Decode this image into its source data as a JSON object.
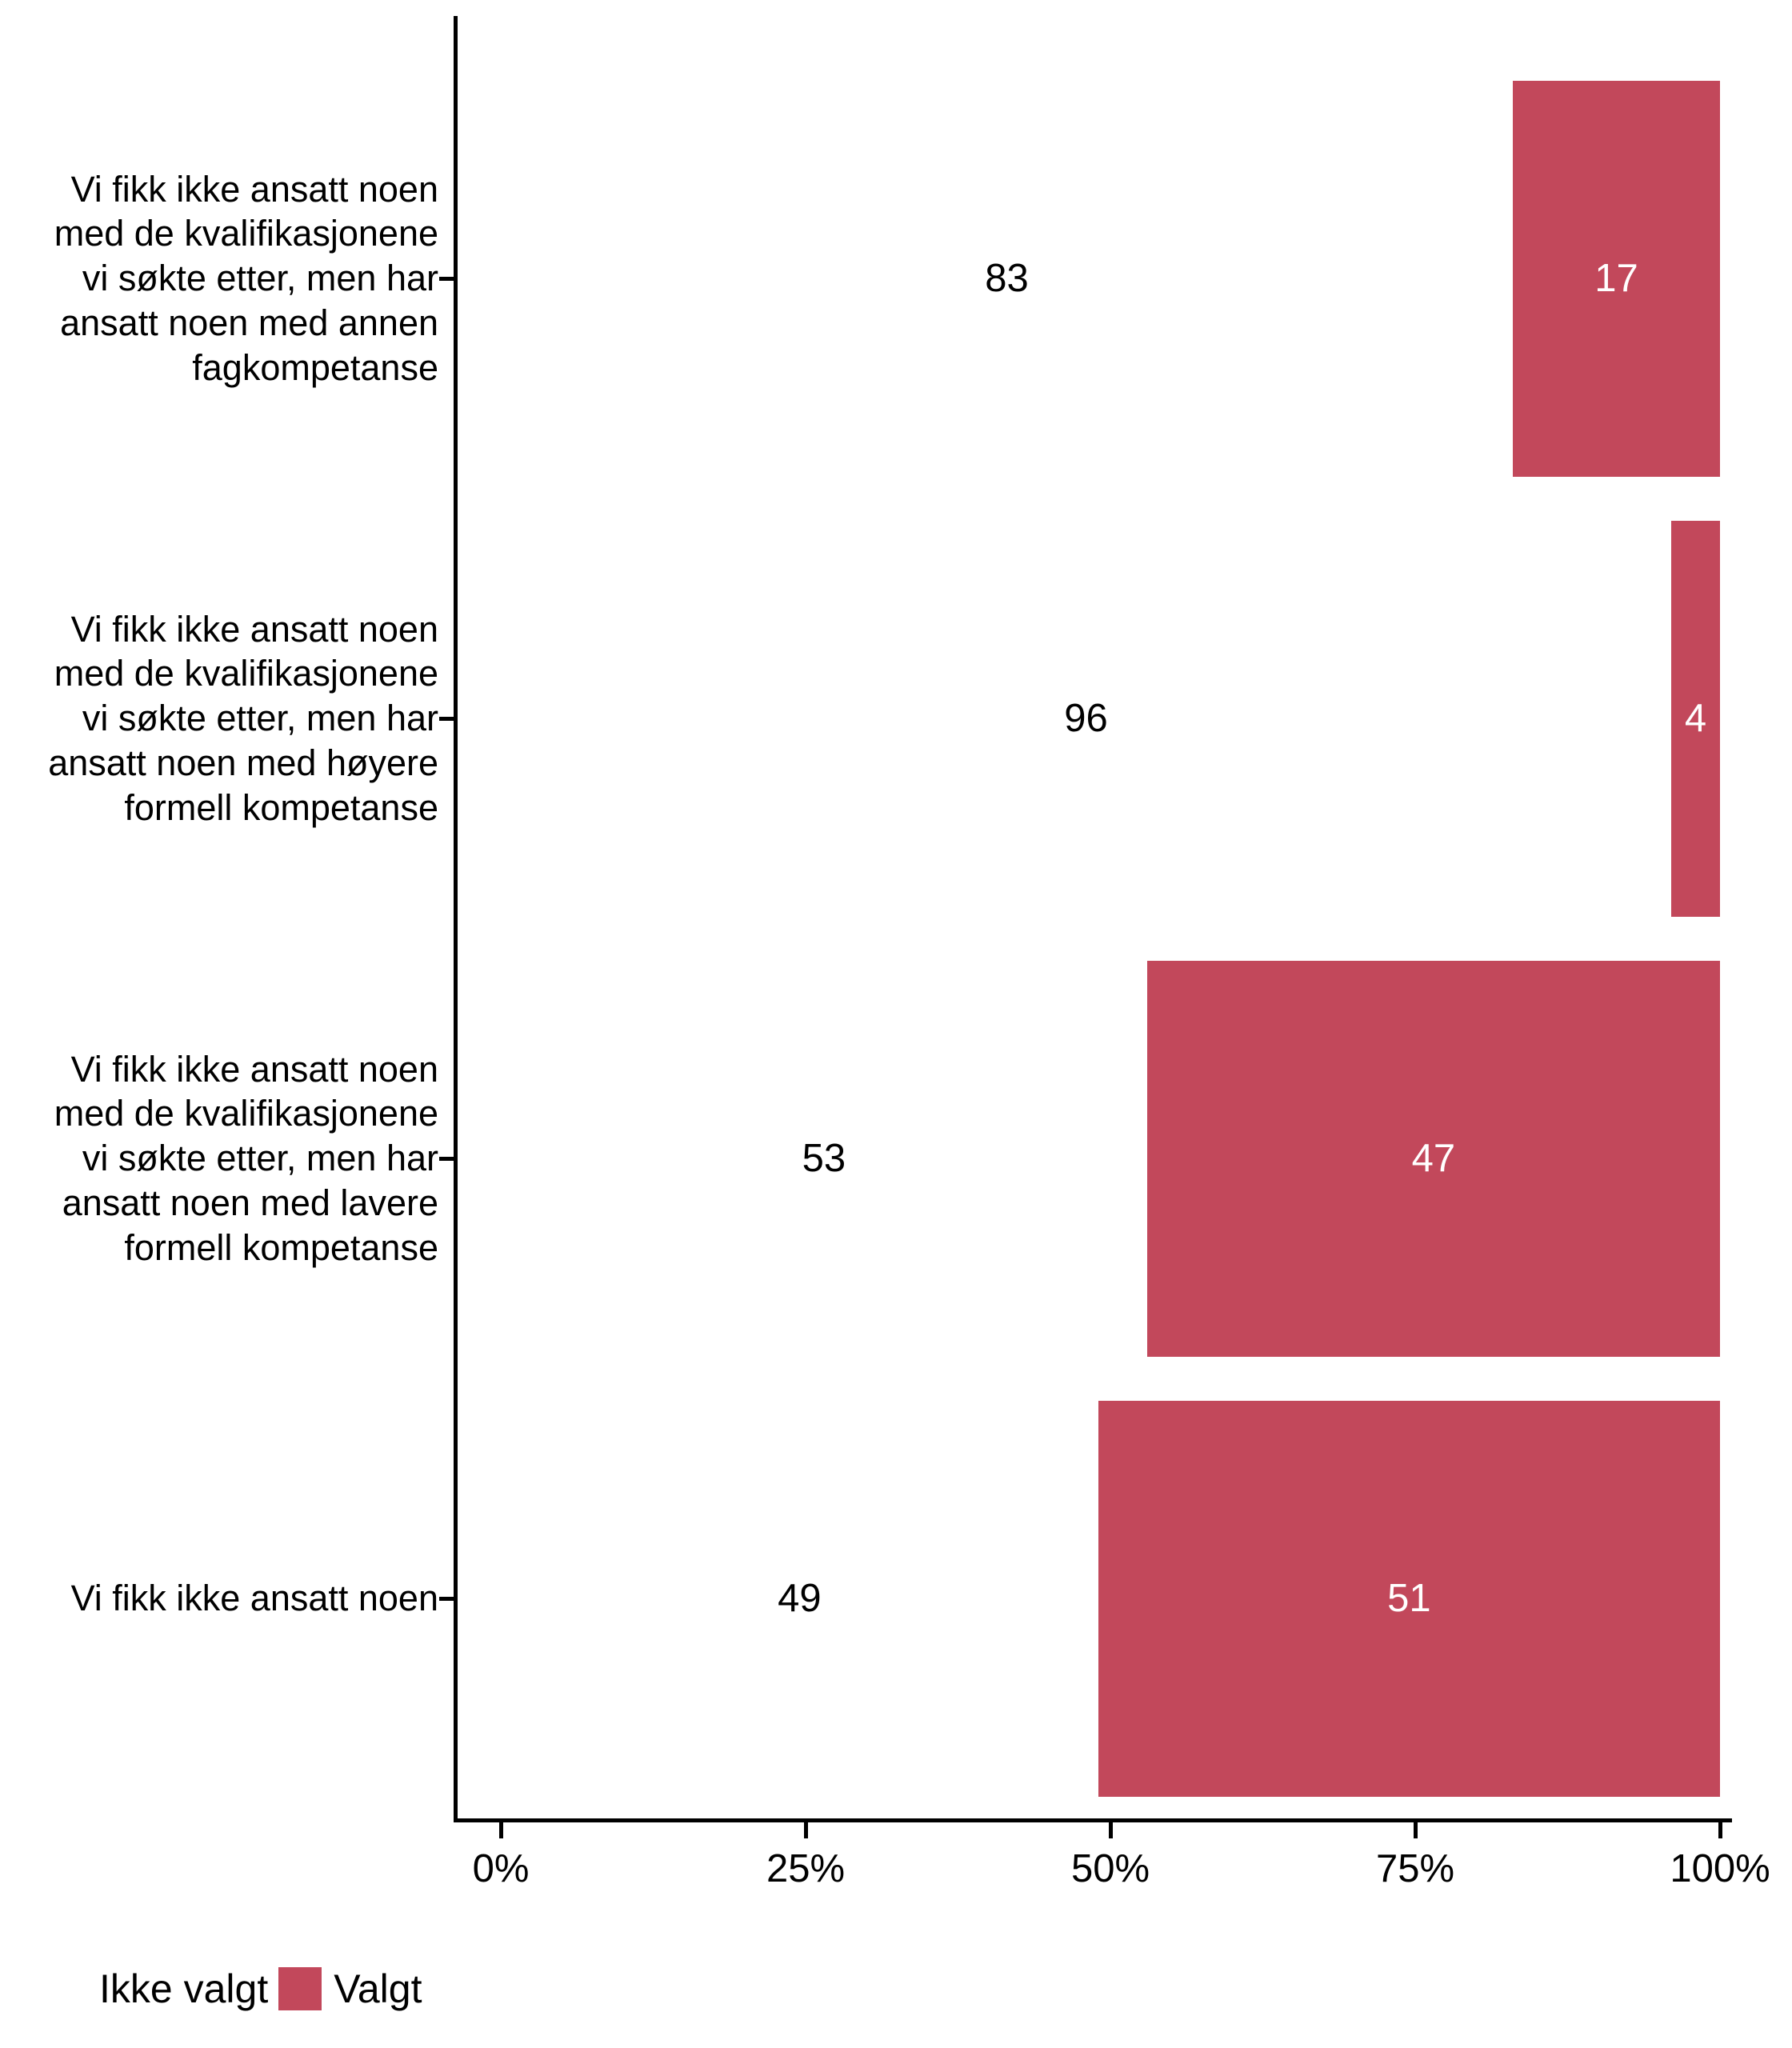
{
  "chart_data": {
    "type": "bar",
    "orientation": "horizontal",
    "stacked": true,
    "unit": "percent",
    "categories": [
      "Vi fikk ikke ansatt noen med de kvalifikasjonene vi søkte etter, men har ansatt noen med annen fagkompetanse",
      "Vi fikk ikke ansatt noen med de kvalifikasjonene vi søkte etter, men har ansatt noen med høyere formell kompetanse",
      "Vi fikk ikke ansatt noen med de kvalifikasjonene vi søkte etter, men har ansatt noen med lavere formell kompetanse",
      "Vi fikk ikke ansatt noen"
    ],
    "series": [
      {
        "name": "Ikke valgt",
        "values": [
          83,
          96,
          53,
          49
        ],
        "color": "#ffffff",
        "label_color": "#000000"
      },
      {
        "name": "Valgt",
        "values": [
          17,
          4,
          47,
          51
        ],
        "color": "#c2485b",
        "label_color": "#ffffff"
      }
    ],
    "xlim": [
      0,
      100
    ],
    "x_ticks": [
      {
        "label": "0%",
        "value": 0
      },
      {
        "label": "25%",
        "value": 25
      },
      {
        "label": "50%",
        "value": 50
      },
      {
        "label": "75%",
        "value": 75
      },
      {
        "label": "100%",
        "value": 100
      }
    ],
    "legend": [
      {
        "label": "Ikke valgt",
        "color": "#ffffff"
      },
      {
        "label": "Valgt",
        "color": "#c2485b"
      }
    ],
    "legend_position": "bottom-left",
    "grid": false
  }
}
